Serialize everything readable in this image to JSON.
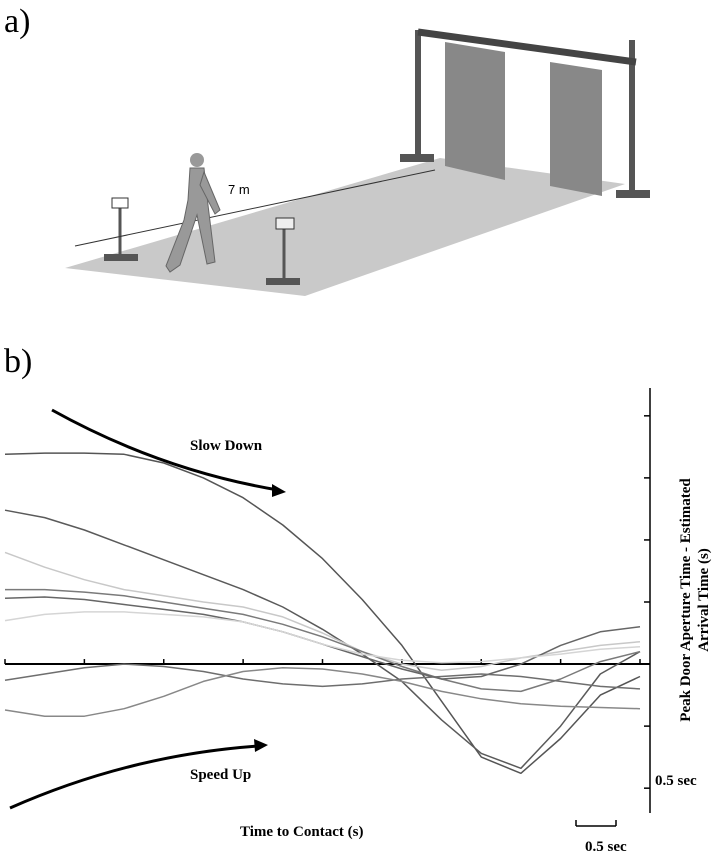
{
  "panel_a": {
    "label": "a)",
    "distance_label": "7 m"
  },
  "panel_b": {
    "label": "b)"
  },
  "chart_data": {
    "type": "line",
    "xlabel": "Time to Contact (s)",
    "ylabel": [
      "Peak Door Aperture Time - Estimated",
      "Arrival Time (s)"
    ],
    "annotations": [
      "Slow Down",
      "Speed Up"
    ],
    "scale_bar_labels": [
      "0.5 sec",
      "0.5 sec"
    ],
    "x": [
      0,
      0.5,
      1,
      1.5,
      2,
      2.5,
      3,
      3.5,
      4,
      4.5,
      5,
      5.5,
      6,
      6.5,
      7,
      7.5,
      8
    ],
    "xlim": [
      0,
      8
    ],
    "xticks": [
      0,
      1,
      2,
      3,
      4,
      5,
      6,
      7,
      8
    ],
    "ylim": [
      -1.2,
      2.2
    ],
    "yticks": [
      -1,
      -0.5,
      0,
      0.5,
      1,
      1.5,
      2
    ],
    "series": [
      {
        "color": "#555555",
        "values": [
          1.69,
          1.7,
          1.7,
          1.69,
          1.62,
          1.5,
          1.34,
          1.12,
          0.85,
          0.52,
          0.15,
          -0.3,
          -0.75,
          -0.88,
          -0.6,
          -0.25,
          -0.1
        ]
      },
      {
        "color": "#5a5a5a",
        "values": [
          1.24,
          1.18,
          1.08,
          0.96,
          0.84,
          0.72,
          0.6,
          0.46,
          0.28,
          0.08,
          -0.14,
          -0.45,
          -0.72,
          -0.84,
          -0.5,
          -0.08,
          0.1
        ]
      },
      {
        "color": "#c8c8c8",
        "values": [
          0.9,
          0.78,
          0.68,
          0.6,
          0.55,
          0.5,
          0.46,
          0.38,
          0.25,
          0.1,
          0.0,
          -0.05,
          -0.02,
          0.05,
          0.1,
          0.15,
          0.18
        ]
      },
      {
        "color": "#7a7a7a",
        "values": [
          0.6,
          0.6,
          0.58,
          0.55,
          0.5,
          0.45,
          0.4,
          0.32,
          0.22,
          0.1,
          -0.02,
          -0.12,
          -0.2,
          -0.22,
          -0.12,
          0.02,
          0.1
        ]
      },
      {
        "color": "#666666",
        "values": [
          0.53,
          0.54,
          0.52,
          0.48,
          0.44,
          0.4,
          0.34,
          0.26,
          0.16,
          0.06,
          -0.04,
          -0.12,
          -0.1,
          0.0,
          0.15,
          0.26,
          0.3
        ]
      },
      {
        "color": "#d5d5d5",
        "values": [
          0.35,
          0.4,
          0.42,
          0.42,
          0.4,
          0.38,
          0.34,
          0.26,
          0.16,
          0.08,
          0.03,
          0.01,
          0.02,
          0.05,
          0.08,
          0.12,
          0.14
        ]
      },
      {
        "color": "#6e6e6e",
        "values": [
          -0.13,
          -0.08,
          -0.03,
          0.0,
          -0.02,
          -0.06,
          -0.12,
          -0.16,
          -0.18,
          -0.16,
          -0.12,
          -0.1,
          -0.08,
          -0.1,
          -0.14,
          -0.18,
          -0.2
        ]
      },
      {
        "color": "#888888",
        "values": [
          -0.37,
          -0.42,
          -0.42,
          -0.36,
          -0.26,
          -0.14,
          -0.06,
          -0.03,
          -0.04,
          -0.08,
          -0.14,
          -0.22,
          -0.28,
          -0.32,
          -0.34,
          -0.35,
          -0.36
        ]
      }
    ]
  }
}
